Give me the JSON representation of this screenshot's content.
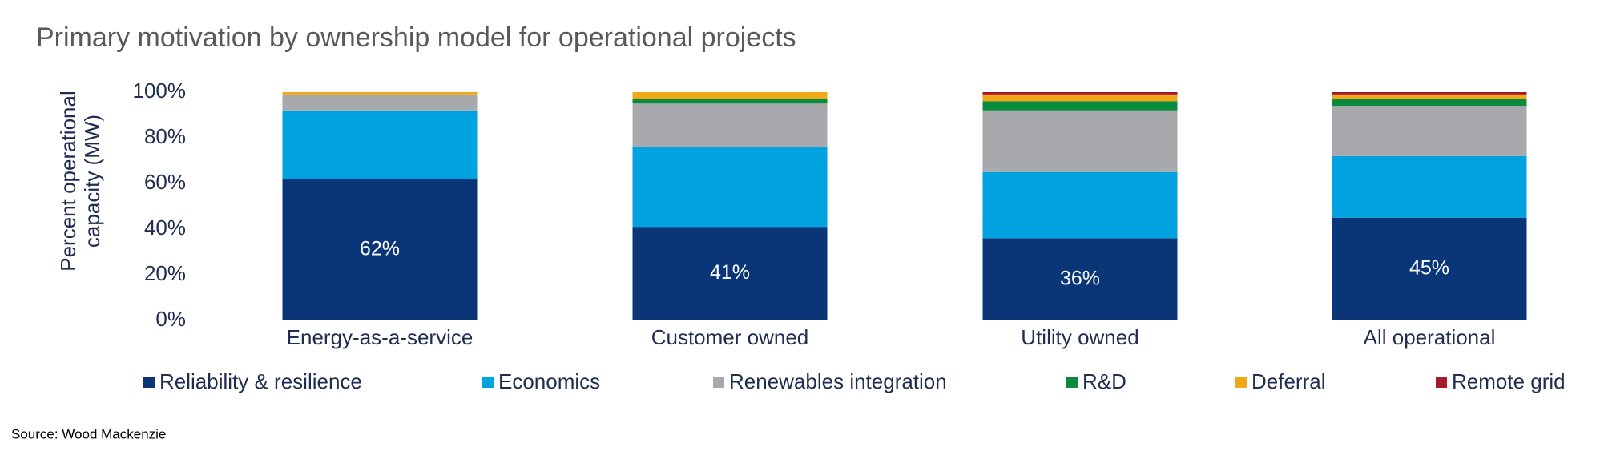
{
  "chart_data": {
    "type": "stacked_bar",
    "title": "Primary motivation by ownership model for operational projects",
    "y_label": "Percent operational capacity (MW)",
    "source": "Source: Wood Mackenzie",
    "categories": [
      "Energy-as-a-service",
      "Customer owned",
      "Utility owned",
      "All operational"
    ],
    "series": [
      {
        "name": "Reliability & resilience",
        "color": "#0a3577",
        "values": [
          62,
          41,
          36,
          45
        ],
        "value_labels": [
          "62%",
          "41%",
          "36%",
          "45%"
        ]
      },
      {
        "name": "Economics",
        "color": "#00a3e0",
        "values": [
          30,
          35,
          29,
          27
        ]
      },
      {
        "name": "Renewables integration",
        "color": "#a7a9ac",
        "values": [
          7,
          19,
          27,
          22
        ]
      },
      {
        "name": "R&D",
        "color": "#0a8a3c",
        "values": [
          0,
          2,
          4,
          3
        ]
      },
      {
        "name": "Deferral",
        "color": "#f0a818",
        "values": [
          1,
          3,
          3,
          2
        ]
      },
      {
        "name": "Remote grid",
        "color": "#a6192e",
        "values": [
          0,
          0,
          1,
          1
        ]
      }
    ],
    "ylim": [
      0,
      100
    ],
    "yticks": [
      {
        "value": 0,
        "label": "0%"
      },
      {
        "value": 20,
        "label": "20%"
      },
      {
        "value": 40,
        "label": "40%"
      },
      {
        "value": 60,
        "label": "60%"
      },
      {
        "value": 80,
        "label": "80%"
      },
      {
        "value": 100,
        "label": "100%"
      }
    ],
    "grid": false
  }
}
